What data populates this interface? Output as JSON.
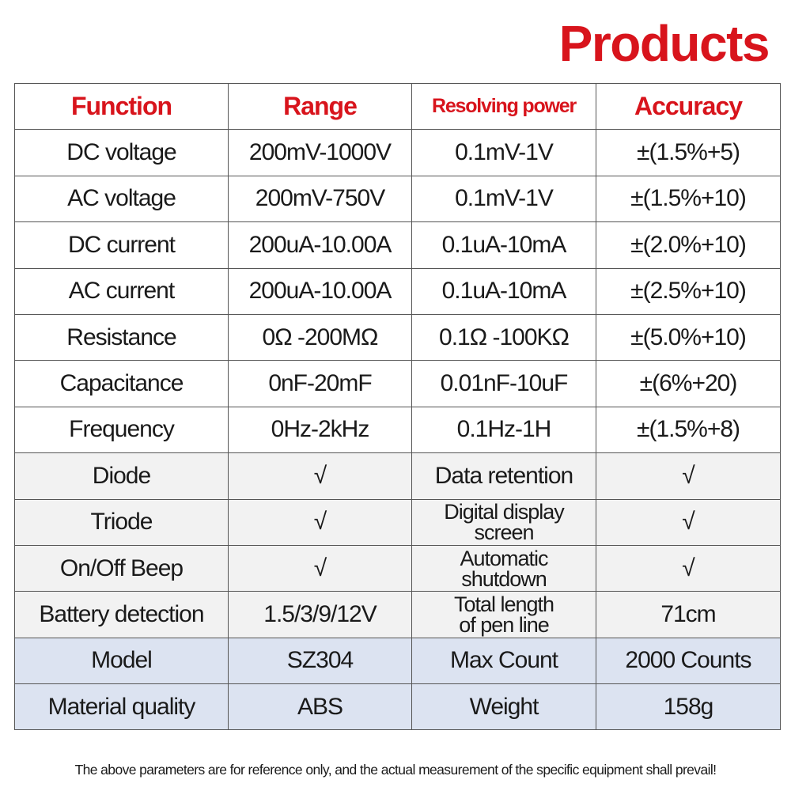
{
  "header": {
    "title": "Products"
  },
  "table": {
    "columns": [
      "Function",
      "Range",
      "Resolving power",
      "Accuracy"
    ],
    "rows": [
      [
        "DC voltage",
        "200mV-1000V",
        "0.1mV-1V",
        "±(1.5%+5)"
      ],
      [
        "AC voltage",
        "200mV-750V",
        "0.1mV-1V",
        "±(1.5%+10)"
      ],
      [
        "DC current",
        "200uA-10.00A",
        "0.1uA-10mA",
        "±(2.0%+10)"
      ],
      [
        "AC current",
        "200uA-10.00A",
        "0.1uA-10mA",
        "±(2.5%+10)"
      ],
      [
        "Resistance",
        "0Ω -200MΩ",
        "0.1Ω -100KΩ",
        "±(5.0%+10)"
      ],
      [
        "Capacitance",
        "0nF-20mF",
        "0.01nF-10uF",
        "±(6%+20)"
      ],
      [
        "Frequency",
        "0Hz-2kHz",
        "0.1Hz-1H",
        "±(1.5%+8)"
      ],
      [
        "Diode",
        "√",
        "Data retention",
        "√"
      ],
      [
        "Triode",
        "√",
        [
          "Digital display",
          "screen"
        ],
        "√"
      ],
      [
        "On/Off Beep",
        "√",
        [
          "Automatic",
          "shutdown"
        ],
        "√"
      ],
      [
        "Battery detection",
        "1.5/3/9/12V",
        [
          "Total length",
          "of pen line"
        ],
        "71cm"
      ],
      [
        "Model",
        "SZ304",
        "Max Count",
        "2000 Counts"
      ],
      [
        "Material quality",
        "ABS",
        "Weight",
        "158g"
      ]
    ]
  },
  "footer": "The above parameters are for reference only, and the actual measurement of the specific equipment shall prevail!"
}
